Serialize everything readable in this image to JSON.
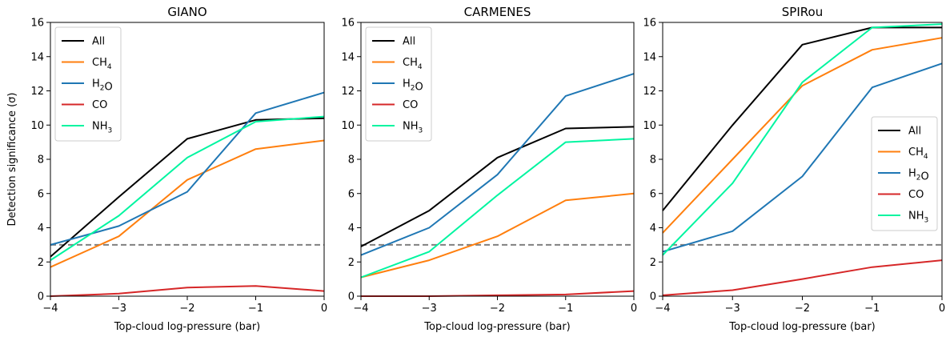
{
  "chart_data": [
    {
      "type": "line",
      "title": "GIANO",
      "xlabel": "Top-cloud log-pressure (bar)",
      "ylabel": "Detection significance (σ)",
      "xlim": [
        -4,
        0
      ],
      "ylim": [
        0,
        16
      ],
      "x_ticks": [
        "−4",
        "−3",
        "−2",
        "−1",
        "0"
      ],
      "y_ticks": [
        "0",
        "2",
        "4",
        "6",
        "8",
        "10",
        "12",
        "14",
        "16"
      ],
      "x": [
        -4,
        -3,
        -2,
        -1,
        0
      ],
      "threshold": 3,
      "legend_position": "upper-left",
      "series": [
        {
          "name": "All",
          "color": "#000000",
          "values": [
            2.3,
            5.8,
            9.2,
            10.3,
            10.4
          ]
        },
        {
          "name": "CH4",
          "color": "#ff7f0e",
          "values": [
            1.7,
            3.5,
            6.8,
            8.6,
            9.1
          ]
        },
        {
          "name": "H2O",
          "color": "#1f77b4",
          "values": [
            3.0,
            4.1,
            6.1,
            10.7,
            11.9
          ]
        },
        {
          "name": "CO",
          "color": "#d62728",
          "values": [
            0.0,
            0.15,
            0.5,
            0.6,
            0.3
          ]
        },
        {
          "name": "NH3",
          "color": "#00f5a0",
          "values": [
            2.1,
            4.7,
            8.1,
            10.2,
            10.5
          ]
        }
      ]
    },
    {
      "type": "line",
      "title": "CARMENES",
      "xlabel": "Top-cloud log-pressure (bar)",
      "ylabel": "",
      "xlim": [
        -4,
        0
      ],
      "ylim": [
        0,
        16
      ],
      "x_ticks": [
        "−4",
        "−3",
        "−2",
        "−1",
        "0"
      ],
      "y_ticks": [
        "0",
        "2",
        "4",
        "6",
        "8",
        "10",
        "12",
        "14",
        "16"
      ],
      "x": [
        -4,
        -3,
        -2,
        -1,
        0
      ],
      "threshold": 3,
      "legend_position": "upper-left",
      "series": [
        {
          "name": "All",
          "color": "#000000",
          "values": [
            2.9,
            5.0,
            8.1,
            9.8,
            9.9
          ]
        },
        {
          "name": "CH4",
          "color": "#ff7f0e",
          "values": [
            1.1,
            2.1,
            3.5,
            5.6,
            6.0
          ]
        },
        {
          "name": "H2O",
          "color": "#1f77b4",
          "values": [
            2.4,
            4.0,
            7.1,
            11.7,
            13.0
          ]
        },
        {
          "name": "CO",
          "color": "#d62728",
          "values": [
            0.0,
            0.0,
            0.05,
            0.1,
            0.3
          ]
        },
        {
          "name": "NH3",
          "color": "#00f5a0",
          "values": [
            1.1,
            2.6,
            5.9,
            9.0,
            9.2
          ]
        }
      ]
    },
    {
      "type": "line",
      "title": "SPIRou",
      "xlabel": "Top-cloud log-pressure (bar)",
      "ylabel": "",
      "xlim": [
        -4,
        0
      ],
      "ylim": [
        0,
        16
      ],
      "x_ticks": [
        "−4",
        "−3",
        "−2",
        "−1",
        "0"
      ],
      "y_ticks": [
        "0",
        "2",
        "4",
        "6",
        "8",
        "10",
        "12",
        "14",
        "16"
      ],
      "x": [
        -4,
        -3,
        -2,
        -1,
        0
      ],
      "threshold": 3,
      "legend_position": "center-right",
      "series": [
        {
          "name": "All",
          "color": "#000000",
          "values": [
            5.0,
            10.0,
            14.7,
            15.7,
            15.7
          ]
        },
        {
          "name": "CH4",
          "color": "#ff7f0e",
          "values": [
            3.7,
            8.0,
            12.3,
            14.4,
            15.1
          ]
        },
        {
          "name": "H2O",
          "color": "#1f77b4",
          "values": [
            2.6,
            3.8,
            7.0,
            12.2,
            13.6
          ]
        },
        {
          "name": "CO",
          "color": "#d62728",
          "values": [
            0.05,
            0.35,
            1.0,
            1.7,
            2.1
          ]
        },
        {
          "name": "NH3",
          "color": "#00f5a0",
          "values": [
            2.4,
            6.6,
            12.5,
            15.7,
            15.9
          ]
        }
      ]
    }
  ]
}
